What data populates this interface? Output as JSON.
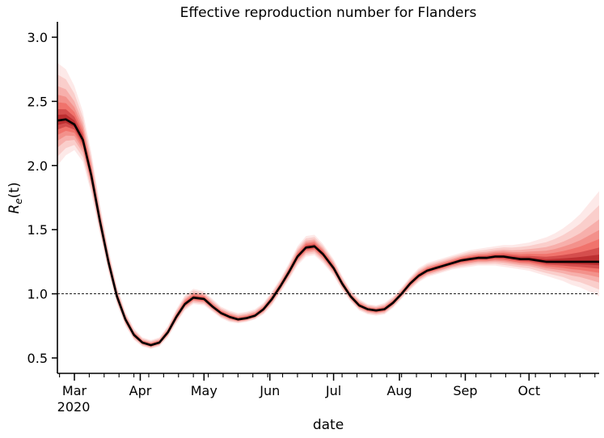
{
  "chart_data": {
    "type": "line",
    "title": "Effective reproduction number for Flanders",
    "xlabel": "date",
    "ylabel": "R_e(t)",
    "ylabel_main": "R",
    "ylabel_sub": "e",
    "ylabel_tail": "(t)",
    "xlim": [
      "2020-02-22",
      "2020-11-03"
    ],
    "ylim": [
      0.38,
      3.12
    ],
    "yticks": [
      0.5,
      1.0,
      1.5,
      2.0,
      2.5,
      3.0
    ],
    "ytick_labels": [
      "0.5",
      "1.0",
      "1.5",
      "2.0",
      "2.5",
      "3.0"
    ],
    "xticks": [
      {
        "date": "2020-03-01",
        "label": "Mar",
        "sublabel": "2020"
      },
      {
        "date": "2020-04-01",
        "label": "Apr",
        "sublabel": ""
      },
      {
        "date": "2020-05-01",
        "label": "May",
        "sublabel": ""
      },
      {
        "date": "2020-06-01",
        "label": "Jun",
        "sublabel": ""
      },
      {
        "date": "2020-07-01",
        "label": "Jul",
        "sublabel": ""
      },
      {
        "date": "2020-08-01",
        "label": "Aug",
        "sublabel": ""
      },
      {
        "date": "2020-09-01",
        "label": "Sep",
        "sublabel": ""
      },
      {
        "date": "2020-10-01",
        "label": "Oct",
        "sublabel": ""
      }
    ],
    "minor_tick_interval_days": 7,
    "reference_line": {
      "y": 1.0,
      "style": "dashed",
      "color": "#000000"
    },
    "grid": false,
    "colors": {
      "median": "#000000",
      "band": "#e8291c",
      "band_core": "#a50f15"
    },
    "series": [
      {
        "x": [
          "2020-02-22",
          "2020-02-26",
          "2020-03-01",
          "2020-03-05",
          "2020-03-09",
          "2020-03-13",
          "2020-03-17",
          "2020-03-21",
          "2020-03-25",
          "2020-03-29",
          "2020-04-02",
          "2020-04-06",
          "2020-04-10",
          "2020-04-14",
          "2020-04-18",
          "2020-04-22",
          "2020-04-26",
          "2020-05-01",
          "2020-05-05",
          "2020-05-09",
          "2020-05-13",
          "2020-05-17",
          "2020-05-21",
          "2020-05-25",
          "2020-05-29",
          "2020-06-02",
          "2020-06-06",
          "2020-06-10",
          "2020-06-14",
          "2020-06-18",
          "2020-06-22",
          "2020-06-26",
          "2020-07-01",
          "2020-07-05",
          "2020-07-09",
          "2020-07-13",
          "2020-07-17",
          "2020-07-21",
          "2020-07-25",
          "2020-07-29",
          "2020-08-02",
          "2020-08-06",
          "2020-08-10",
          "2020-08-14",
          "2020-08-18",
          "2020-08-22",
          "2020-08-26",
          "2020-08-30",
          "2020-09-03",
          "2020-09-07",
          "2020-09-11",
          "2020-09-15",
          "2020-09-19",
          "2020-09-23",
          "2020-09-27",
          "2020-10-01",
          "2020-10-05",
          "2020-10-09",
          "2020-10-13",
          "2020-10-17",
          "2020-10-21",
          "2020-10-25",
          "2020-10-29",
          "2020-11-03"
        ],
        "median": [
          2.35,
          2.36,
          2.32,
          2.2,
          1.92,
          1.57,
          1.25,
          0.98,
          0.8,
          0.68,
          0.62,
          0.6,
          0.62,
          0.7,
          0.82,
          0.92,
          0.97,
          0.96,
          0.9,
          0.85,
          0.82,
          0.8,
          0.81,
          0.83,
          0.88,
          0.96,
          1.06,
          1.17,
          1.29,
          1.36,
          1.37,
          1.31,
          1.2,
          1.08,
          0.98,
          0.91,
          0.88,
          0.87,
          0.88,
          0.93,
          1.0,
          1.08,
          1.14,
          1.18,
          1.2,
          1.22,
          1.24,
          1.26,
          1.27,
          1.28,
          1.28,
          1.29,
          1.29,
          1.28,
          1.27,
          1.27,
          1.26,
          1.25,
          1.25,
          1.25,
          1.25,
          1.25,
          1.25,
          1.25
        ],
        "lower": [
          2.0,
          2.08,
          2.12,
          2.03,
          1.78,
          1.47,
          1.17,
          0.92,
          0.75,
          0.64,
          0.59,
          0.57,
          0.59,
          0.66,
          0.77,
          0.87,
          0.92,
          0.91,
          0.86,
          0.81,
          0.78,
          0.77,
          0.78,
          0.8,
          0.84,
          0.91,
          1.01,
          1.11,
          1.22,
          1.29,
          1.3,
          1.24,
          1.14,
          1.03,
          0.94,
          0.87,
          0.84,
          0.83,
          0.84,
          0.89,
          0.96,
          1.03,
          1.09,
          1.13,
          1.15,
          1.17,
          1.19,
          1.2,
          1.21,
          1.22,
          1.22,
          1.22,
          1.21,
          1.2,
          1.19,
          1.18,
          1.16,
          1.14,
          1.12,
          1.1,
          1.07,
          1.05,
          1.02,
          0.98
        ],
        "upper": [
          2.8,
          2.75,
          2.62,
          2.42,
          2.1,
          1.7,
          1.35,
          1.06,
          0.86,
          0.73,
          0.66,
          0.64,
          0.66,
          0.75,
          0.88,
          0.99,
          1.04,
          1.02,
          0.96,
          0.9,
          0.87,
          0.85,
          0.86,
          0.88,
          0.93,
          1.02,
          1.12,
          1.24,
          1.37,
          1.45,
          1.46,
          1.39,
          1.27,
          1.14,
          1.03,
          0.96,
          0.92,
          0.91,
          0.93,
          0.98,
          1.05,
          1.13,
          1.2,
          1.24,
          1.26,
          1.28,
          1.3,
          1.32,
          1.34,
          1.35,
          1.36,
          1.37,
          1.38,
          1.38,
          1.39,
          1.4,
          1.42,
          1.44,
          1.47,
          1.51,
          1.56,
          1.62,
          1.7,
          1.8
        ]
      }
    ]
  }
}
